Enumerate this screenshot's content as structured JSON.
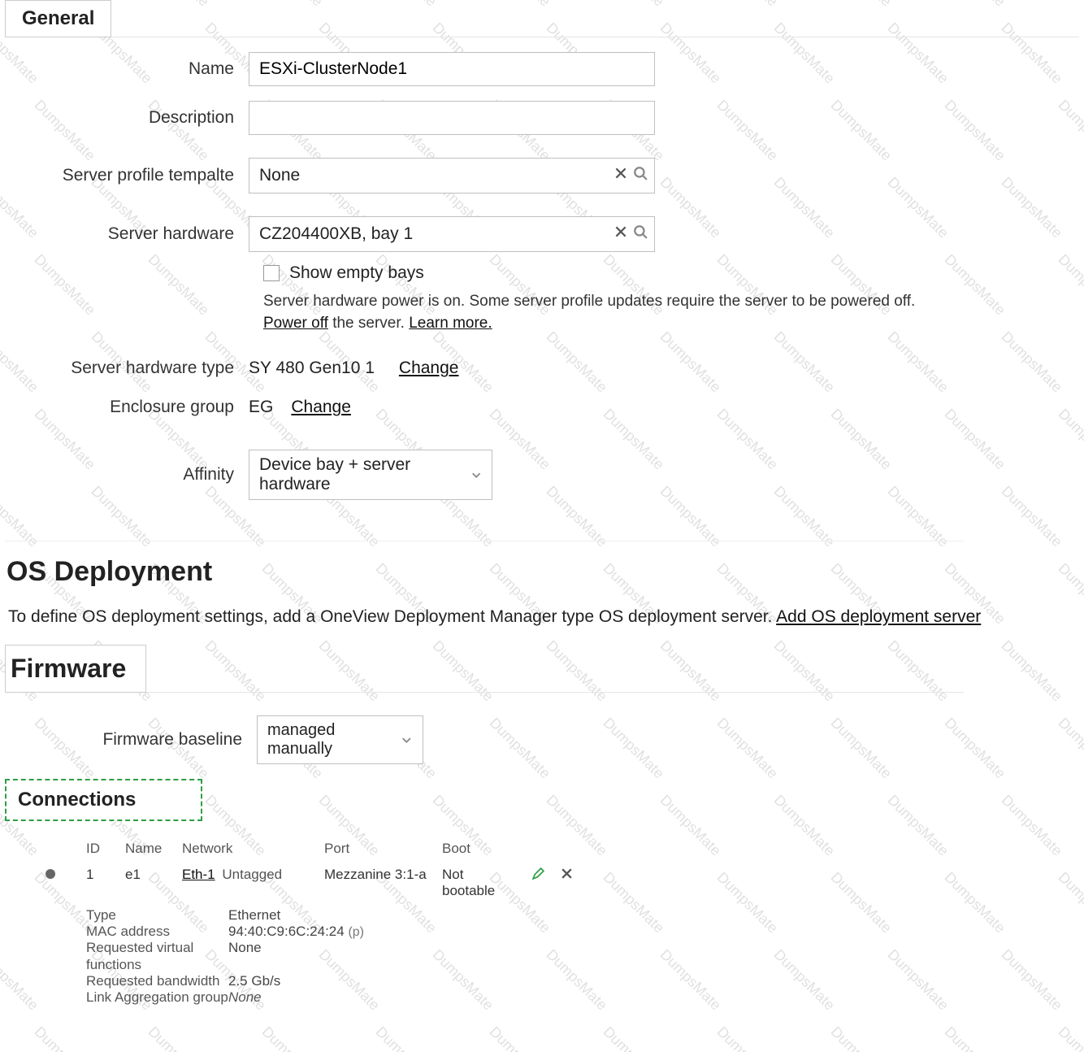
{
  "watermark_text": "DumpsMate",
  "sections": {
    "general": "General",
    "os_deployment": "OS Deployment",
    "firmware": "Firmware",
    "connections": "Connections"
  },
  "general": {
    "labels": {
      "name": "Name",
      "description": "Description",
      "template": "Server profile tempalte",
      "hardware": "Server hardware",
      "show_empty": "Show empty bays",
      "hw_type": "Server hardware type",
      "enclosure_group": "Enclosure group",
      "affinity": "Affinity"
    },
    "name_value": "ESXi-ClusterNode1",
    "description_value": "",
    "template_value": "None",
    "hardware_value": "CZ204400XB, bay 1",
    "power_note_1": "Server hardware power is on. Some server profile updates require the server to be powered off. ",
    "power_off_link": "Power off",
    "power_note_2": " the server. ",
    "learn_more": "Learn more.",
    "hw_type_value": "SY 480 Gen10 1",
    "change": "Change",
    "enclosure_group_value": "EG",
    "affinity_value": "Device bay + server hardware"
  },
  "os": {
    "text": "To define OS deployment settings, add a OneView Deployment Manager type OS deployment server. ",
    "link": "Add OS deployment server"
  },
  "firmware": {
    "label": "Firmware baseline",
    "value": "managed manually"
  },
  "connections": {
    "headers": {
      "id": "ID",
      "name": "Name",
      "network": "Network",
      "port": "Port",
      "boot": "Boot"
    },
    "row": {
      "id": "1",
      "name": "e1",
      "network": "Eth-1",
      "network_tag": "Untagged",
      "port": "Mezzanine 3:1-a",
      "boot": "Not bootable"
    },
    "details": {
      "type_k": "Type",
      "type_v": "Ethernet",
      "mac_k": "MAC address",
      "mac_v": "94:40:C9:6C:24:24",
      "mac_suffix": "(p)",
      "rvf_k": "Requested virtual functions",
      "rvf_v": "None",
      "rbw_k": "Requested bandwidth",
      "rbw_v": "2.5 Gb/s",
      "lag_k": "Link Aggregation group",
      "lag_v": "None"
    }
  },
  "colors": {
    "border": "#bfbfbf",
    "dash": "#2e9e44",
    "edit_icon": "#2e9e44",
    "close_icon": "#555555",
    "text": "#222222"
  }
}
